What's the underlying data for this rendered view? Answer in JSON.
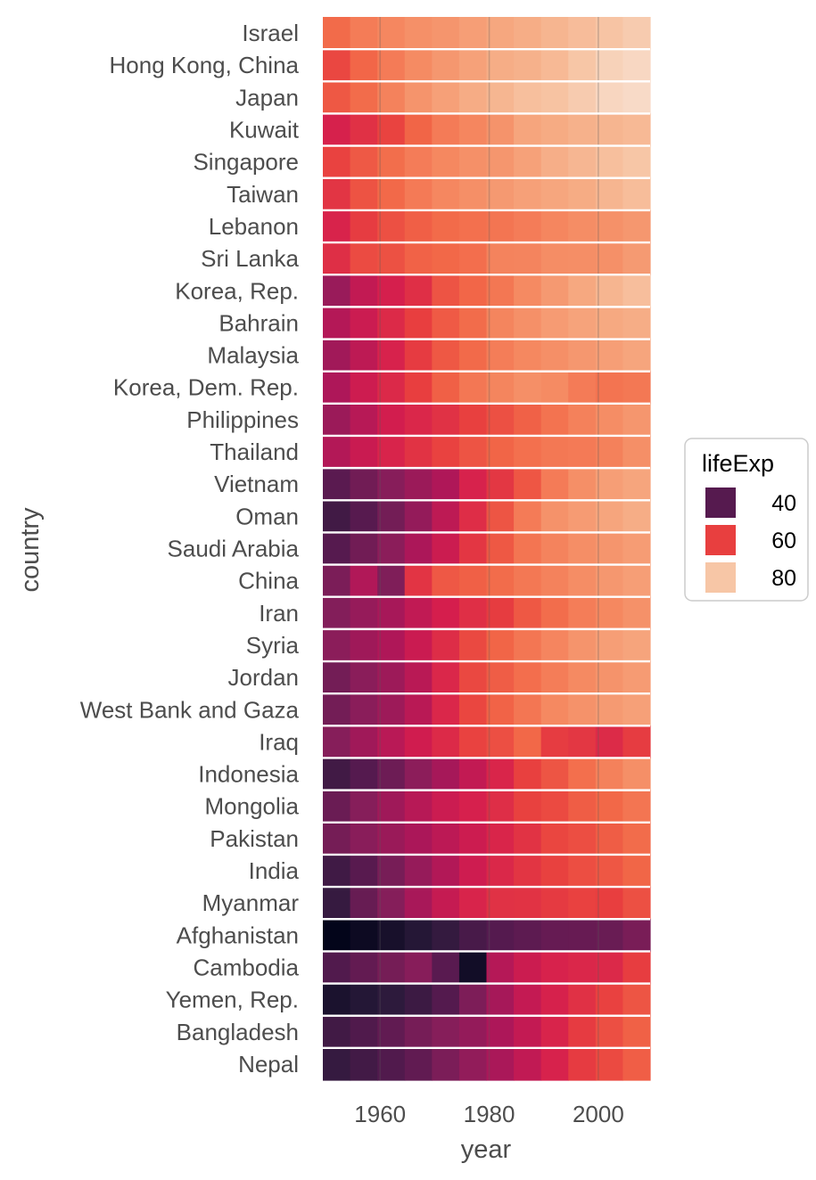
{
  "chart_data": {
    "type": "heatmap",
    "x": [
      1952,
      1957,
      1962,
      1967,
      1972,
      1977,
      1982,
      1987,
      1992,
      1997,
      2002,
      2007
    ],
    "xlabel": "year",
    "ylabel": "country",
    "xticks": [
      1960,
      1980,
      2000
    ],
    "xlim": [
      1949.5,
      2009.5
    ],
    "legend": {
      "title": "lifeExp",
      "entries": [
        40,
        60,
        80
      ],
      "position": "right"
    },
    "color_scale": {
      "stops": [
        [
          28.8,
          "#03051a"
        ],
        [
          35,
          "#2b1a3b"
        ],
        [
          40,
          "#561a4f"
        ],
        [
          45,
          "#841e5a"
        ],
        [
          50,
          "#ad1759"
        ],
        [
          55,
          "#d41d4e"
        ],
        [
          60,
          "#e83f3f"
        ],
        [
          65,
          "#f26848"
        ],
        [
          70,
          "#f58b63"
        ],
        [
          75,
          "#f6aa82"
        ],
        [
          80,
          "#f7c6a6"
        ],
        [
          84,
          "#f8e5d9"
        ]
      ]
    },
    "countries": [
      "Israel",
      "Hong Kong, China",
      "Japan",
      "Kuwait",
      "Singapore",
      "Taiwan",
      "Lebanon",
      "Sri Lanka",
      "Korea, Rep.",
      "Bahrain",
      "Malaysia",
      "Korea, Dem. Rep.",
      "Philippines",
      "Thailand",
      "Vietnam",
      "Oman",
      "Saudi Arabia",
      "China",
      "Iran",
      "Syria",
      "Jordan",
      "West Bank and Gaza",
      "Iraq",
      "Indonesia",
      "Mongolia",
      "Pakistan",
      "India",
      "Myanmar",
      "Afghanistan",
      "Cambodia",
      "Yemen, Rep.",
      "Bangladesh",
      "Nepal"
    ],
    "values": [
      [
        65.4,
        67.8,
        69.4,
        70.8,
        71.6,
        73.1,
        74.5,
        75.6,
        76.9,
        78.3,
        79.7,
        80.7
      ],
      [
        61.0,
        64.8,
        67.7,
        70.0,
        72.0,
        73.6,
        75.5,
        76.2,
        77.6,
        80.0,
        81.5,
        82.2
      ],
      [
        63.0,
        65.5,
        68.7,
        71.4,
        73.4,
        75.4,
        77.1,
        78.7,
        79.4,
        80.7,
        82.0,
        82.6
      ],
      [
        55.6,
        58.0,
        60.5,
        64.6,
        67.7,
        69.3,
        71.3,
        74.2,
        75.2,
        76.2,
        76.9,
        77.6
      ],
      [
        60.4,
        63.2,
        65.8,
        67.9,
        69.5,
        70.8,
        71.8,
        73.6,
        75.8,
        77.2,
        78.8,
        80.0
      ],
      [
        58.5,
        62.4,
        65.2,
        67.5,
        69.4,
        70.6,
        72.2,
        73.4,
        74.3,
        75.3,
        76.9,
        78.4
      ],
      [
        55.9,
        59.5,
        62.1,
        63.9,
        65.4,
        66.1,
        66.9,
        67.9,
        69.3,
        70.3,
        71.0,
        72.0
      ],
      [
        57.6,
        61.5,
        62.2,
        64.3,
        65.0,
        65.9,
        68.8,
        69.0,
        70.4,
        70.5,
        70.8,
        72.4
      ],
      [
        47.5,
        52.7,
        55.3,
        57.7,
        62.6,
        64.8,
        67.1,
        69.8,
        72.2,
        74.6,
        77.0,
        78.6
      ],
      [
        50.9,
        53.8,
        56.9,
        59.9,
        63.3,
        65.6,
        69.1,
        70.8,
        72.6,
        73.9,
        74.8,
        75.6
      ],
      [
        48.5,
        52.1,
        55.7,
        59.4,
        63.0,
        65.3,
        68.0,
        69.5,
        70.7,
        71.9,
        73.0,
        74.2
      ],
      [
        50.1,
        54.1,
        56.7,
        59.9,
        64.0,
        67.2,
        69.1,
        70.6,
        69.98,
        67.7,
        66.7,
        67.3
      ],
      [
        47.8,
        51.3,
        54.8,
        56.4,
        58.1,
        60.1,
        62.1,
        64.2,
        66.5,
        68.6,
        70.3,
        71.7
      ],
      [
        50.8,
        53.6,
        56.1,
        58.3,
        60.4,
        62.5,
        64.6,
        66.1,
        67.3,
        67.5,
        68.6,
        70.6
      ],
      [
        40.4,
        42.9,
        45.4,
        47.8,
        50.3,
        55.8,
        58.8,
        62.8,
        67.7,
        70.7,
        73.0,
        74.2
      ],
      [
        37.6,
        40.1,
        43.2,
        46.99,
        52.1,
        57.4,
        62.7,
        67.7,
        71.2,
        72.5,
        74.2,
        75.6
      ],
      [
        40.0,
        42.9,
        45.9,
        49.9,
        53.9,
        58.7,
        63.0,
        66.8,
        68.8,
        70.5,
        71.6,
        72.8
      ],
      [
        44.0,
        50.5,
        44.5,
        58.4,
        63.1,
        63.97,
        65.5,
        67.3,
        68.7,
        70.4,
        72.0,
        73.0
      ],
      [
        44.9,
        47.2,
        49.3,
        52.5,
        55.2,
        57.7,
        59.6,
        63.0,
        65.7,
        68.0,
        69.5,
        71.0
      ],
      [
        45.9,
        48.3,
        50.3,
        53.7,
        57.3,
        61.2,
        64.6,
        66.97,
        69.2,
        71.5,
        73.1,
        74.1
      ],
      [
        43.2,
        45.7,
        48.1,
        51.6,
        56.5,
        61.1,
        63.7,
        65.9,
        68.0,
        69.8,
        71.3,
        72.5
      ],
      [
        43.2,
        45.7,
        48.1,
        51.6,
        56.5,
        60.8,
        64.4,
        67.0,
        69.7,
        71.1,
        72.4,
        73.4
      ],
      [
        45.3,
        48.4,
        51.5,
        54.5,
        56.95,
        60.4,
        62.0,
        65.0,
        59.5,
        58.8,
        57.0,
        59.5
      ],
      [
        37.5,
        39.9,
        42.5,
        46.0,
        49.2,
        52.7,
        56.2,
        60.1,
        62.7,
        66.0,
        68.6,
        70.7
      ],
      [
        42.2,
        45.2,
        48.3,
        51.3,
        53.8,
        55.5,
        57.5,
        60.2,
        61.3,
        63.6,
        65.0,
        66.8
      ],
      [
        43.4,
        45.6,
        47.7,
        49.8,
        51.9,
        54.0,
        56.2,
        58.2,
        60.8,
        61.8,
        63.6,
        65.5
      ],
      [
        37.4,
        40.2,
        43.6,
        47.2,
        50.7,
        54.2,
        56.6,
        58.6,
        60.2,
        61.8,
        62.9,
        64.7
      ],
      [
        36.3,
        41.9,
        45.1,
        49.4,
        53.1,
        56.1,
        58.1,
        58.3,
        59.3,
        60.3,
        59.9,
        62.1
      ],
      [
        28.8,
        30.3,
        32.0,
        34.0,
        36.1,
        38.4,
        39.9,
        40.8,
        41.7,
        41.8,
        42.1,
        43.8
      ],
      [
        39.4,
        41.4,
        43.4,
        45.4,
        40.3,
        31.2,
        51.0,
        53.9,
        55.8,
        56.5,
        56.8,
        59.7
      ],
      [
        32.5,
        33.97,
        35.2,
        36.98,
        39.8,
        44.2,
        49.1,
        52.9,
        55.6,
        58.0,
        60.3,
        62.7
      ],
      [
        37.5,
        39.3,
        41.2,
        43.5,
        45.3,
        46.9,
        50.0,
        52.8,
        56.0,
        59.4,
        62.0,
        64.1
      ],
      [
        36.2,
        37.7,
        39.4,
        41.2,
        43.97,
        46.7,
        49.6,
        52.5,
        55.7,
        59.4,
        61.3,
        63.8
      ]
    ]
  }
}
